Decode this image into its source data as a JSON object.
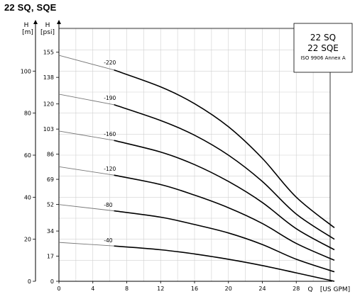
{
  "page_title": "22 SQ, SQE",
  "chart_data": {
    "type": "line",
    "xlabel": "Q",
    "xunit": "[US GPM]",
    "ylabel_left": "H",
    "yunit_left": "[m]",
    "ylabel_right": "H",
    "yunit_right": "[psi]",
    "xlim": [
      0,
      32
    ],
    "ylim_m": [
      0,
      120
    ],
    "x_ticks": [
      "0",
      "4",
      "8",
      "12",
      "16",
      "20",
      "24",
      "28"
    ],
    "m_ticks": [
      "0",
      "20",
      "40",
      "60",
      "80",
      "100"
    ],
    "m_tick_values": [
      0,
      20,
      40,
      60,
      80,
      100
    ],
    "psi_ticks": [
      "0",
      "17",
      "34",
      "52",
      "69",
      "86",
      "103",
      "120",
      "138",
      "155"
    ],
    "psi_tick_values": [
      0,
      17,
      34,
      52,
      69,
      86,
      103,
      120,
      138,
      155
    ],
    "grid": true,
    "legend": {
      "lines": [
        "22 SQ",
        "22 SQE"
      ],
      "note": "ISO 9906 Annex A",
      "position": "top-right"
    },
    "series": [
      {
        "name": "-220",
        "shutoff": 107.5,
        "x": [
          0,
          6.5,
          12,
          16,
          20,
          24,
          28,
          32.5
        ],
        "y": [
          107.5,
          100.5,
          92.5,
          84.5,
          73.5,
          58.5,
          40,
          25.5
        ]
      },
      {
        "name": "-190",
        "shutoff": 89,
        "x": [
          0,
          6.5,
          12,
          16,
          20,
          24,
          28,
          32.5
        ],
        "y": [
          89,
          84,
          76.5,
          69.5,
          60,
          47.5,
          32,
          20
        ]
      },
      {
        "name": "-160",
        "shutoff": 71.5,
        "x": [
          0,
          6.5,
          12,
          16,
          20,
          24,
          28,
          32.5
        ],
        "y": [
          71.5,
          67,
          61.5,
          55.5,
          47.5,
          37.5,
          25,
          15
        ]
      },
      {
        "name": "-120",
        "shutoff": 54.5,
        "x": [
          0,
          6.5,
          12,
          16,
          20,
          24,
          28,
          32.5
        ],
        "y": [
          54.5,
          50.5,
          46,
          41,
          35,
          27.5,
          18,
          10
        ]
      },
      {
        "name": "-80",
        "shutoff": 36.5,
        "x": [
          0,
          6.5,
          12,
          16,
          20,
          24,
          28,
          32.5
        ],
        "y": [
          36.5,
          33.5,
          30.5,
          27,
          23,
          17.5,
          10.5,
          4.5
        ]
      },
      {
        "name": "-40",
        "shutoff": 18.5,
        "x": [
          0,
          6.5,
          12,
          16,
          20,
          24,
          28,
          32.5
        ],
        "y": [
          18.5,
          16.8,
          15,
          13,
          10.5,
          7.5,
          4,
          0
        ]
      }
    ]
  }
}
